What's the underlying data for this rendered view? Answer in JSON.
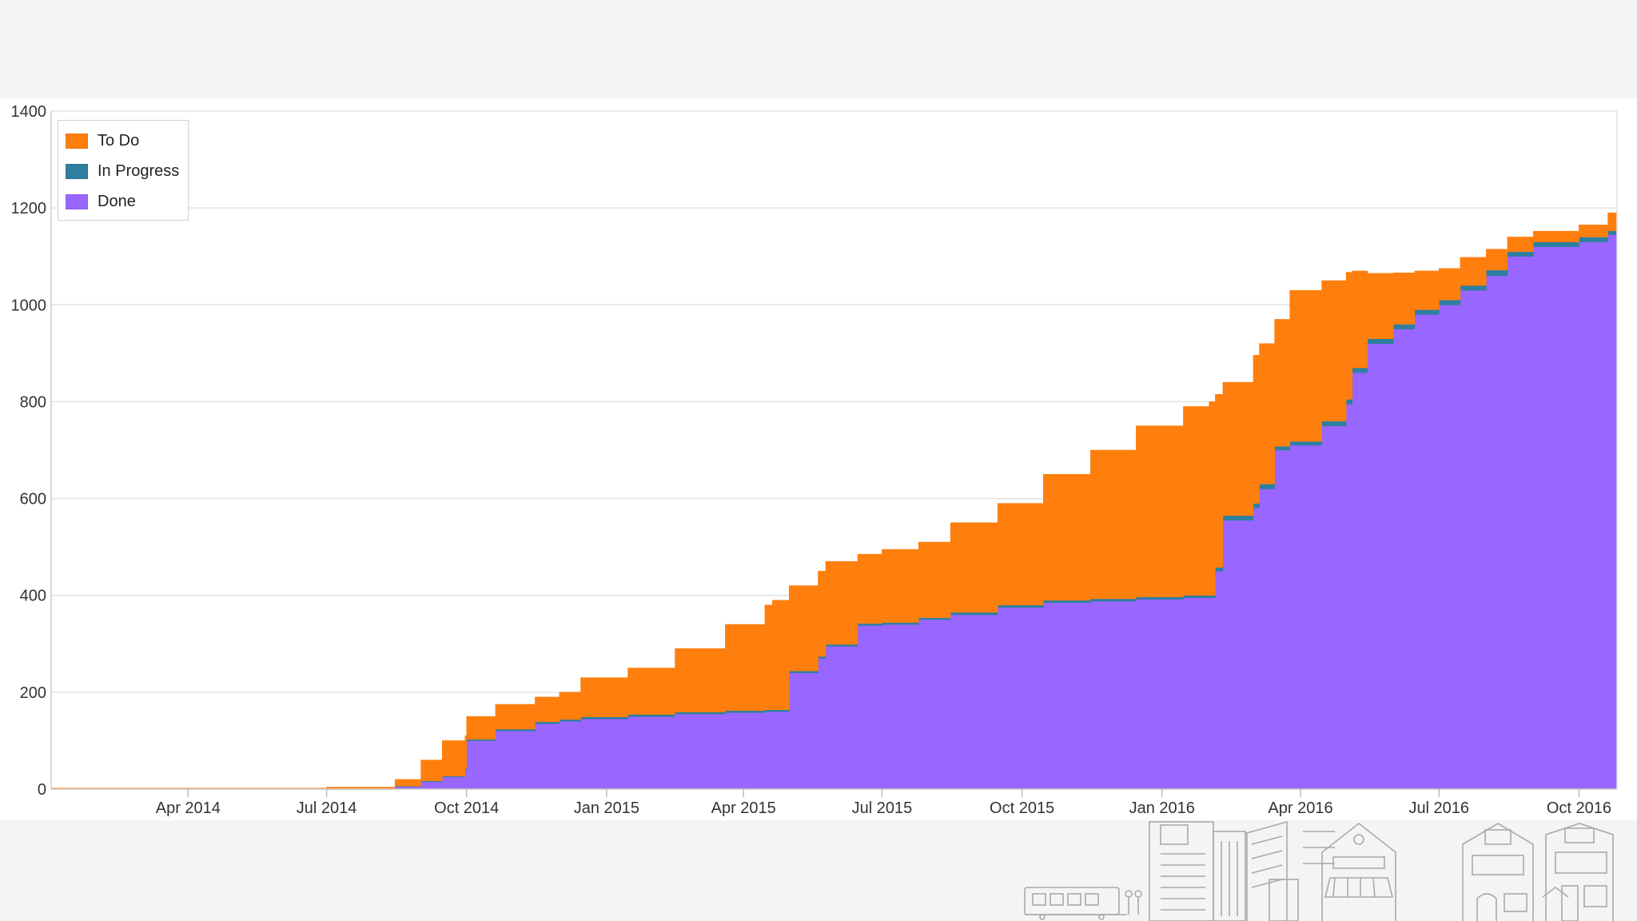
{
  "chart_data": {
    "type": "area",
    "stacked": true,
    "title": "",
    "xlabel": "",
    "ylabel": "",
    "ylim": [
      0,
      1400
    ],
    "xlim": [
      "2014-01-01",
      "2016-10-26"
    ],
    "yticks": [
      0,
      200,
      400,
      600,
      800,
      1000,
      1200,
      1400
    ],
    "ytick_labels": [
      "0",
      "200",
      "400",
      "600",
      "800",
      "1000",
      "1200",
      "1400"
    ],
    "xticks": [
      {
        "date": "2014-04-01",
        "label": "Apr 2014"
      },
      {
        "date": "2014-07-01",
        "label": "Jul 2014"
      },
      {
        "date": "2014-10-01",
        "label": "Oct 2014"
      },
      {
        "date": "2015-01-01",
        "label": "Jan 2015"
      },
      {
        "date": "2015-04-01",
        "label": "Apr 2015"
      },
      {
        "date": "2015-07-01",
        "label": "Jul 2015"
      },
      {
        "date": "2015-10-01",
        "label": "Oct 2015"
      },
      {
        "date": "2016-01-01",
        "label": "Jan 2016"
      },
      {
        "date": "2016-04-01",
        "label": "Apr 2016"
      },
      {
        "date": "2016-07-01",
        "label": "Jul 2016"
      },
      {
        "date": "2016-10-01",
        "label": "Oct 2016"
      }
    ],
    "grid": true,
    "legend_position": "top-left",
    "dates": [
      "2014-01-01",
      "2014-04-01",
      "2014-07-01",
      "2014-08-01",
      "2014-08-15",
      "2014-09-01",
      "2014-09-15",
      "2014-09-30",
      "2014-10-01",
      "2014-10-20",
      "2014-11-15",
      "2014-12-01",
      "2014-12-15",
      "2015-01-15",
      "2015-02-15",
      "2015-03-20",
      "2015-04-15",
      "2015-04-20",
      "2015-05-01",
      "2015-05-20",
      "2015-05-25",
      "2015-06-15",
      "2015-07-01",
      "2015-07-25",
      "2015-08-15",
      "2015-09-15",
      "2015-10-15",
      "2015-11-15",
      "2015-12-15",
      "2016-01-15",
      "2016-02-01",
      "2016-02-05",
      "2016-02-10",
      "2016-03-01",
      "2016-03-05",
      "2016-03-15",
      "2016-03-25",
      "2016-04-15",
      "2016-05-01",
      "2016-05-05",
      "2016-05-15",
      "2016-06-01",
      "2016-06-15",
      "2016-07-01",
      "2016-07-15",
      "2016-08-01",
      "2016-08-15",
      "2016-09-01",
      "2016-10-01",
      "2016-10-20",
      "2016-10-26"
    ],
    "series": [
      {
        "name": "Done",
        "color": "#9966ff",
        "values": [
          0,
          0,
          0,
          0,
          5,
          15,
          25,
          40,
          100,
          120,
          135,
          140,
          145,
          150,
          155,
          158,
          160,
          160,
          240,
          270,
          295,
          338,
          340,
          350,
          360,
          375,
          385,
          388,
          392,
          395,
          395,
          450,
          555,
          580,
          620,
          700,
          710,
          750,
          795,
          860,
          920,
          950,
          980,
          1000,
          1030,
          1060,
          1100,
          1120,
          1130,
          1145,
          1150
        ]
      },
      {
        "name": "In Progress",
        "color": "#2e7fa0",
        "values": [
          0,
          0,
          0,
          0,
          1,
          2,
          2,
          3,
          3,
          4,
          4,
          4,
          4,
          4,
          4,
          4,
          4,
          4,
          4,
          4,
          4,
          4,
          4,
          4,
          5,
          5,
          5,
          5,
          5,
          5,
          5,
          8,
          10,
          10,
          10,
          8,
          8,
          10,
          10,
          10,
          10,
          10,
          10,
          10,
          10,
          12,
          10,
          10,
          10,
          8,
          8
        ]
      },
      {
        "name": "To Do",
        "color": "#ff7f0e",
        "values": [
          2,
          2,
          4,
          4,
          14,
          43,
          73,
          67,
          47,
          51,
          51,
          56,
          81,
          96,
          131,
          178,
          216,
          226,
          176,
          176,
          171,
          143,
          151,
          156,
          185,
          210,
          260,
          307,
          353,
          390,
          400,
          357,
          275,
          306,
          290,
          262,
          312,
          290,
          262,
          200,
          135,
          106,
          80,
          65,
          58,
          43,
          30,
          22,
          25,
          37,
          47
        ]
      }
    ]
  },
  "colors": {
    "page_background": "#f4f4f2",
    "plot_background": "#ffffff",
    "grid": "#e2e2e2"
  },
  "illustration": {
    "icon": "city-street-icon"
  }
}
